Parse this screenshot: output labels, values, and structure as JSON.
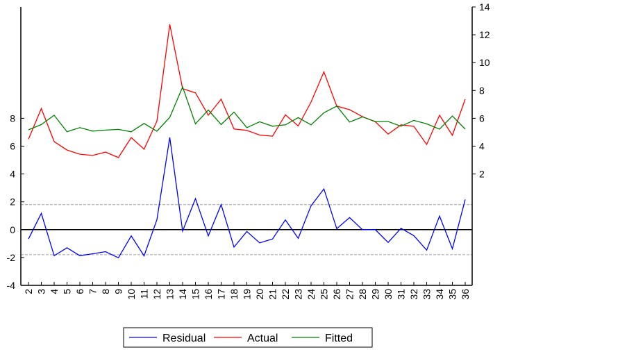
{
  "chart_data": {
    "type": "line",
    "title": "",
    "xlabel": "",
    "categories": [
      "2",
      "3",
      "4",
      "5",
      "6",
      "7",
      "8",
      "9",
      "10",
      "11",
      "12",
      "13",
      "14",
      "15",
      "16",
      "17",
      "18",
      "19",
      "20",
      "21",
      "22",
      "23",
      "24",
      "25",
      "26",
      "27",
      "28",
      "29",
      "30",
      "31",
      "32",
      "33",
      "34",
      "35",
      "36"
    ],
    "left_axis": {
      "range": [
        -4,
        16
      ],
      "ticks": [
        "-4",
        "-2",
        "0",
        "2",
        "4",
        "6",
        "8"
      ],
      "tick_values": [
        -4,
        -2,
        0,
        2,
        4,
        6,
        8
      ]
    },
    "right_axis": {
      "range": [
        -6,
        14
      ],
      "ticks": [
        "2",
        "4",
        "6",
        "8",
        "10",
        "12",
        "14"
      ],
      "tick_values": [
        2,
        4,
        6,
        8,
        10,
        12,
        14
      ]
    },
    "reference_lines": {
      "zero": 0,
      "upper_band": 1.8,
      "lower_band": -1.8
    },
    "series": [
      {
        "name": "Residual",
        "axis": "left",
        "color": "#0000ff",
        "values": [
          -0.67,
          1.17,
          -1.87,
          -1.3,
          -1.87,
          -1.73,
          -1.58,
          -2.02,
          -0.45,
          -1.88,
          0.72,
          6.63,
          -0.1,
          2.23,
          -0.45,
          1.8,
          -1.25,
          -0.13,
          -0.95,
          -0.67,
          0.7,
          -0.62,
          1.72,
          2.93,
          0.07,
          0.87,
          0.0,
          0.0,
          -0.92,
          0.1,
          -0.43,
          -1.47,
          0.98,
          -1.37,
          2.17
        ]
      },
      {
        "name": "Actual",
        "axis": "right",
        "color": "#ff0000",
        "values": [
          4.5,
          6.7,
          4.33,
          3.72,
          3.42,
          3.33,
          3.57,
          3.18,
          4.62,
          3.78,
          5.8,
          12.75,
          8.13,
          7.83,
          6.22,
          7.37,
          5.23,
          5.13,
          4.8,
          4.72,
          6.25,
          5.45,
          7.17,
          9.33,
          6.88,
          6.62,
          6.12,
          5.75,
          4.87,
          5.53,
          5.42,
          4.12,
          6.22,
          4.78,
          7.37
        ]
      },
      {
        "name": "Fitted",
        "axis": "right",
        "color": "#008000",
        "values": [
          5.17,
          5.55,
          6.22,
          5.03,
          5.33,
          5.08,
          5.15,
          5.2,
          5.03,
          5.63,
          5.07,
          6.07,
          8.25,
          5.6,
          6.6,
          5.55,
          6.45,
          5.33,
          5.75,
          5.43,
          5.53,
          6.05,
          5.53,
          6.4,
          6.88,
          5.73,
          6.1,
          5.77,
          5.77,
          5.43,
          5.85,
          5.6,
          5.22,
          6.17,
          5.22
        ]
      }
    ],
    "legend": {
      "position": "bottom-center",
      "entries": [
        "Residual",
        "Actual",
        "Fitted"
      ]
    },
    "grid": false
  }
}
